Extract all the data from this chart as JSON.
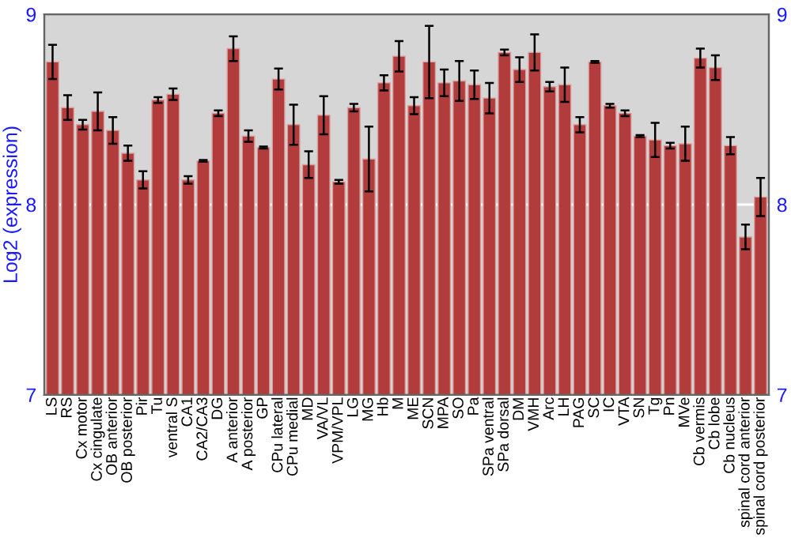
{
  "chart_data": {
    "type": "bar",
    "ylabel": "Log2 (expression)",
    "categories": [
      "LS",
      "RS",
      "Cx motor",
      "Cx cingulate",
      "OB anterior",
      "OB posterior",
      "Pir",
      "Tu",
      "ventral S",
      "CA1",
      "CA2/CA3",
      "DG",
      "A anterior",
      "A posterior",
      "GP",
      "CPu lateral",
      "CPu medial",
      "MD",
      "VA/VL",
      "VPM/VPL",
      "LG",
      "MG",
      "Hb",
      "M",
      "ME",
      "SCN",
      "MPA",
      "SO",
      "Pa",
      "SPa ventral",
      "SPa dorsal",
      "DM",
      "VMH",
      "Arc",
      "LH",
      "PAG",
      "SC",
      "IC",
      "VTA",
      "SN",
      "Tg",
      "Pn",
      "MVe",
      "Cb vermis",
      "Cb lobe",
      "Cb nucleus",
      "spinal cord anterior",
      "spinal cord posterior"
    ],
    "values": [
      8.75,
      8.51,
      8.42,
      8.49,
      8.39,
      8.27,
      8.13,
      8.55,
      8.58,
      8.13,
      8.23,
      8.48,
      8.82,
      8.36,
      8.3,
      8.66,
      8.42,
      8.21,
      8.47,
      8.12,
      8.51,
      8.24,
      8.64,
      8.78,
      8.52,
      8.75,
      8.64,
      8.65,
      8.63,
      8.56,
      8.8,
      8.71,
      8.8,
      8.62,
      8.63,
      8.42,
      8.75,
      8.52,
      8.48,
      8.36,
      8.34,
      8.31,
      8.32,
      8.77,
      8.72,
      8.31,
      7.83,
      8.04
    ],
    "errors": [
      0.09,
      0.065,
      0.025,
      0.1,
      0.07,
      0.04,
      0.045,
      0.015,
      0.03,
      0.02,
      0.005,
      0.015,
      0.065,
      0.03,
      0.005,
      0.055,
      0.105,
      0.07,
      0.1,
      0.01,
      0.02,
      0.17,
      0.04,
      0.08,
      0.045,
      0.19,
      0.07,
      0.105,
      0.075,
      0.08,
      0.015,
      0.065,
      0.095,
      0.025,
      0.09,
      0.04,
      0.005,
      0.01,
      0.015,
      0.005,
      0.09,
      0.015,
      0.09,
      0.05,
      0.065,
      0.045,
      0.065,
      0.1
    ],
    "color": "#b23b3b",
    "ylim": [
      7,
      9
    ],
    "yticks": [
      7,
      8,
      9
    ],
    "y2lim": [
      7,
      9
    ],
    "y2ticks": [
      7,
      8,
      9
    ],
    "grid": "y"
  }
}
